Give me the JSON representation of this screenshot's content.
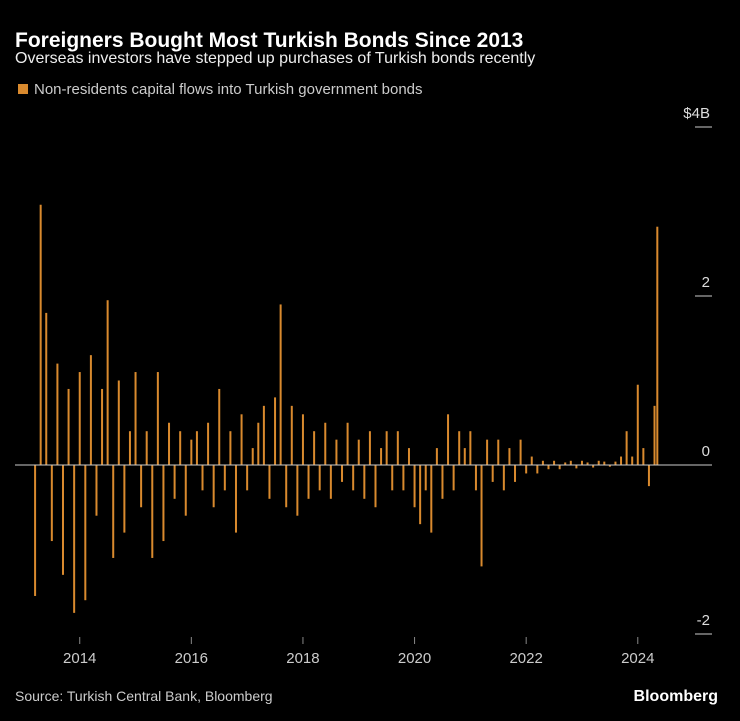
{
  "chart_data": {
    "type": "bar",
    "title": "Foreigners Bought Most Turkish Bonds Since 2013",
    "subtitle": "Overseas investors have stepped up purchases of Turkish bonds recently",
    "source": "Source: Turkish Central Bank, Bloomberg",
    "brand": "Bloomberg",
    "series": [
      {
        "name": "Non-residents capital flows into Turkish government bonds",
        "color": "#d98a2e",
        "values": [
          -1.55,
          3.08,
          1.8,
          -0.9,
          1.2,
          -1.3,
          0.9,
          -1.75,
          1.1,
          -1.6,
          1.3,
          -0.6,
          0.9,
          1.95,
          -1.1,
          1.0,
          -0.8,
          0.4,
          1.1,
          -0.5,
          0.4,
          -1.1,
          1.1,
          -0.9,
          0.5,
          -0.4,
          0.4,
          -0.6,
          0.3,
          0.4,
          -0.3,
          0.5,
          -0.5,
          0.9,
          -0.3,
          0.4,
          -0.8,
          0.6,
          -0.3,
          0.2,
          0.5,
          0.7,
          -0.4,
          0.8,
          1.9,
          -0.5,
          0.7,
          -0.6,
          0.6,
          -0.4,
          0.4,
          -0.3,
          0.5,
          -0.4,
          0.3,
          -0.2,
          0.5,
          -0.3,
          0.3,
          -0.4,
          0.4,
          -0.5,
          0.2,
          0.4,
          -0.3,
          0.4,
          -0.3,
          0.2,
          -0.5,
          -0.7,
          -0.3,
          -0.8,
          0.2,
          -0.4,
          0.6,
          -0.3,
          0.4,
          0.2,
          0.4,
          -0.3,
          -1.2,
          0.3,
          -0.2,
          0.3,
          -0.3,
          0.2,
          -0.2,
          0.3,
          -0.1,
          0.1,
          -0.1,
          0.05,
          -0.05,
          0.05,
          -0.05,
          0.03,
          0.05,
          -0.04,
          0.05,
          0.03,
          -0.03,
          0.05,
          0.04,
          -0.02,
          0.04,
          0.1,
          0.4,
          0.1,
          0.95,
          0.2,
          -0.25,
          0.7,
          2.82
        ]
      }
    ],
    "x": [
      2013.2,
      2013.3,
      2013.4,
      2013.5,
      2013.6,
      2013.7,
      2013.8,
      2013.9,
      2014.0,
      2014.1,
      2014.2,
      2014.3,
      2014.4,
      2014.5,
      2014.6,
      2014.7,
      2014.8,
      2014.9,
      2015.0,
      2015.1,
      2015.2,
      2015.3,
      2015.4,
      2015.5,
      2015.6,
      2015.7,
      2015.8,
      2015.9,
      2016.0,
      2016.1,
      2016.2,
      2016.3,
      2016.4,
      2016.5,
      2016.6,
      2016.7,
      2016.8,
      2016.9,
      2017.0,
      2017.1,
      2017.2,
      2017.3,
      2017.4,
      2017.5,
      2017.6,
      2017.7,
      2017.8,
      2017.9,
      2018.0,
      2018.1,
      2018.2,
      2018.3,
      2018.4,
      2018.5,
      2018.6,
      2018.7,
      2018.8,
      2018.9,
      2019.0,
      2019.1,
      2019.2,
      2019.3,
      2019.4,
      2019.5,
      2019.6,
      2019.7,
      2019.8,
      2019.9,
      2020.0,
      2020.1,
      2020.2,
      2020.3,
      2020.4,
      2020.5,
      2020.6,
      2020.7,
      2020.8,
      2020.9,
      2021.0,
      2021.1,
      2021.2,
      2021.3,
      2021.4,
      2021.5,
      2021.6,
      2021.7,
      2021.8,
      2021.9,
      2022.0,
      2022.1,
      2022.2,
      2022.3,
      2022.4,
      2022.5,
      2022.6,
      2022.7,
      2022.8,
      2022.9,
      2023.0,
      2023.1,
      2023.2,
      2023.3,
      2023.4,
      2023.5,
      2023.6,
      2023.7,
      2023.8,
      2023.9,
      2024.0,
      2024.1,
      2024.2,
      2024.3,
      2024.35
    ],
    "xlim": [
      2012.84,
      2025.33
    ],
    "xticks": [
      2014,
      2016,
      2018,
      2020,
      2022,
      2024
    ],
    "ylim": [
      -2,
      4
    ],
    "yticks": [
      {
        "value": 4,
        "label": "$4B"
      },
      2,
      0,
      -2
    ]
  }
}
